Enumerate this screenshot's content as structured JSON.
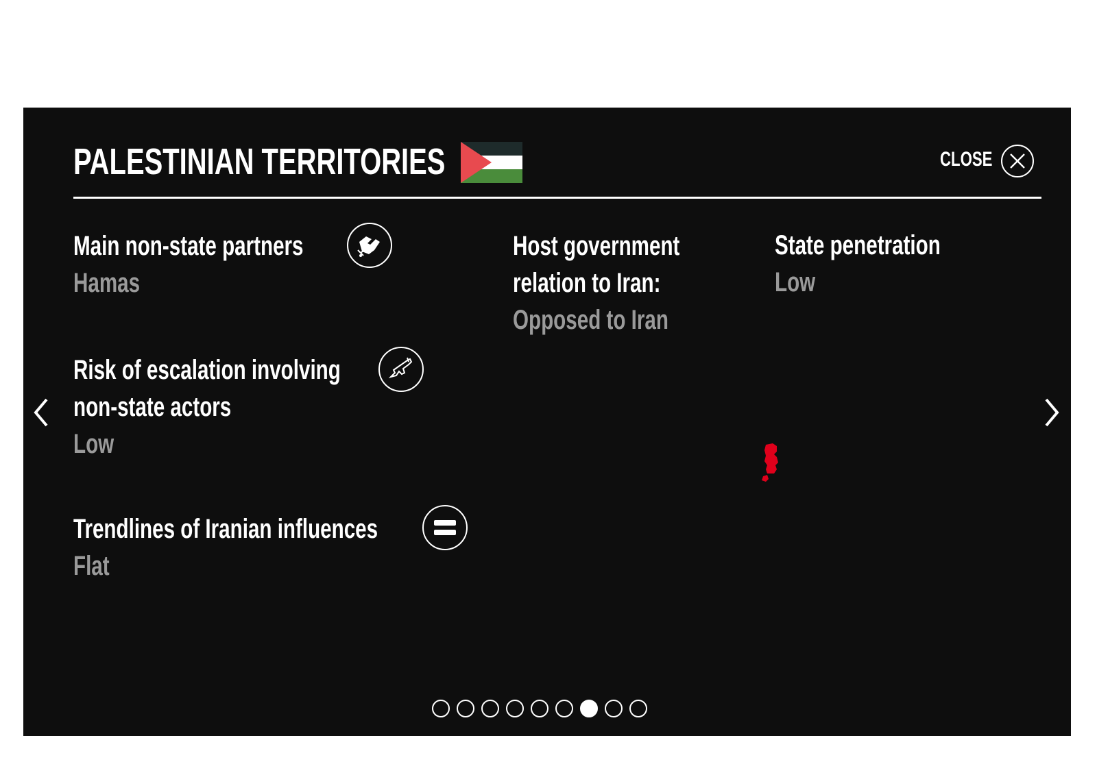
{
  "header": {
    "title": "PALESTINIAN TERRITORIES",
    "close_label": "CLOSE",
    "flag_icon": "palestine-flag-icon"
  },
  "stats": {
    "partners": {
      "label": "Main non-state partners",
      "value": "Hamas",
      "icon": "handshake-icon"
    },
    "host_government": {
      "label_line1": "Host government",
      "label_line2": "relation to Iran:",
      "value": "Opposed to Iran"
    },
    "state_penetration": {
      "label": "State penetration",
      "value": "Low"
    },
    "escalation_risk": {
      "label_line1": "Risk of escalation involving",
      "label_line2": "non-state actors",
      "value": "Low",
      "icon": "rifle-icon"
    },
    "trendlines": {
      "label": "Trendlines of Iranian influences",
      "value": "Flat",
      "icon": "equals-icon"
    }
  },
  "navigation": {
    "prev_icon": "chevron-left-icon",
    "next_icon": "chevron-right-icon",
    "total_pages": 9,
    "current_page": 7
  },
  "colors": {
    "background": "#0e0e0e",
    "text": "#ffffff",
    "value_text": "#9a9a9a",
    "map_highlight": "#e0001b"
  }
}
